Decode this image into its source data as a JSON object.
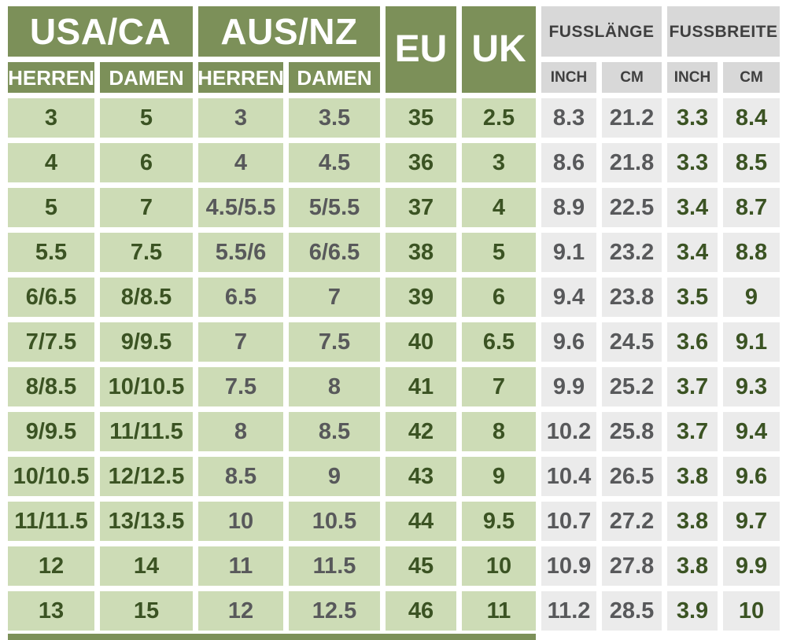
{
  "header": {
    "usa_ca": "USA/CA",
    "aus_nz": "AUS/NZ",
    "eu": "EU",
    "uk": "UK",
    "fusslaenge": "FUSSLÄNGE",
    "fussbreite": "FUSSBREITE",
    "herren": "HERREN",
    "damen": "DAMEN",
    "inch": "INCH",
    "cm": "CM"
  },
  "columns": [
    "usa_ca_herren",
    "usa_ca_damen",
    "aus_nz_herren",
    "aus_nz_damen",
    "eu",
    "uk",
    "fusslaenge_inch",
    "fusslaenge_cm",
    "fussbreite_inch",
    "fussbreite_cm"
  ],
  "rows": [
    [
      "3",
      "5",
      "3",
      "3.5",
      "35",
      "2.5",
      "8.3",
      "21.2",
      "3.3",
      "8.4"
    ],
    [
      "4",
      "6",
      "4",
      "4.5",
      "36",
      "3",
      "8.6",
      "21.8",
      "3.3",
      "8.5"
    ],
    [
      "5",
      "7",
      "4.5/5.5",
      "5/5.5",
      "37",
      "4",
      "8.9",
      "22.5",
      "3.4",
      "8.7"
    ],
    [
      "5.5",
      "7.5",
      "5.5/6",
      "6/6.5",
      "38",
      "5",
      "9.1",
      "23.2",
      "3.4",
      "8.8"
    ],
    [
      "6/6.5",
      "8/8.5",
      "6.5",
      "7",
      "39",
      "6",
      "9.4",
      "23.8",
      "3.5",
      "9"
    ],
    [
      "7/7.5",
      "9/9.5",
      "7",
      "7.5",
      "40",
      "6.5",
      "9.6",
      "24.5",
      "3.6",
      "9.1"
    ],
    [
      "8/8.5",
      "10/10.5",
      "7.5",
      "8",
      "41",
      "7",
      "9.9",
      "25.2",
      "3.7",
      "9.3"
    ],
    [
      "9/9.5",
      "11/11.5",
      "8",
      "8.5",
      "42",
      "8",
      "10.2",
      "25.8",
      "3.7",
      "9.4"
    ],
    [
      "10/10.5",
      "12/12.5",
      "8.5",
      "9",
      "43",
      "9",
      "10.4",
      "26.5",
      "3.8",
      "9.6"
    ],
    [
      "11/11.5",
      "13/13.5",
      "10",
      "10.5",
      "44",
      "9.5",
      "10.7",
      "27.2",
      "3.8",
      "9.7"
    ],
    [
      "12",
      "14",
      "11",
      "11.5",
      "45",
      "10",
      "10.9",
      "27.8",
      "3.8",
      "9.9"
    ],
    [
      "13",
      "15",
      "12",
      "12.5",
      "46",
      "11",
      "11.2",
      "28.5",
      "3.9",
      "10"
    ]
  ],
  "colors": {
    "green_dark": "#7c9059",
    "green_light": "#cddcb6",
    "gray_head": "#d8d8d8",
    "gray_cell": "#ebebeb",
    "text_green": "#3b5323",
    "text_gray": "#58595b"
  }
}
